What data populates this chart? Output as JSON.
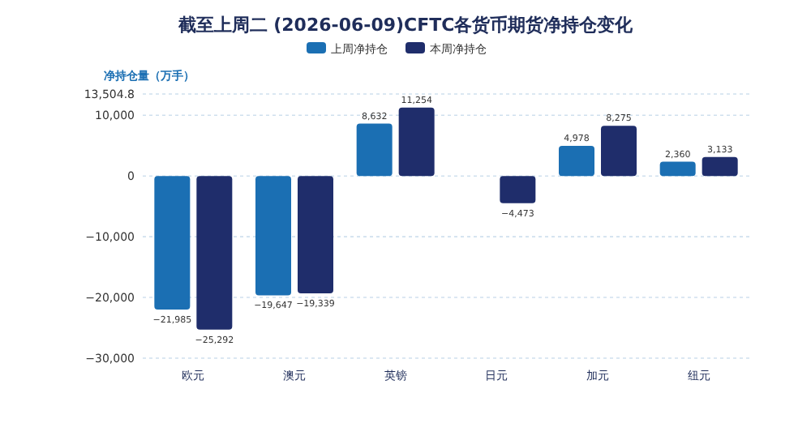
{
  "chart_data": {
    "type": "bar",
    "title": "截至上周二 (2026-06-09)CFTC各货币期货净持仓变化",
    "ylabel": "净持仓量（万手）",
    "categories": [
      "欧元",
      "澳元",
      "英镑",
      "日元",
      "加元",
      "纽元"
    ],
    "series": [
      {
        "name": "上周净持仓",
        "color": "#1b6fb3",
        "values": [
          -21985,
          -19647,
          8632,
          null,
          4978,
          2360
        ],
        "value_labels": [
          "−21,985",
          "−19,647",
          "8,632",
          null,
          "4,978",
          "2,360"
        ]
      },
      {
        "name": "本周净持仓",
        "color": "#1f2d6b",
        "values": [
          -25292,
          -19339,
          11254,
          -4473,
          8275,
          3133
        ],
        "value_labels": [
          "−25,292",
          "−19,339",
          "11,254",
          "−4,473",
          "8,275",
          "3,133"
        ]
      }
    ],
    "ylim": [
      -30000,
      13504.8
    ],
    "yticks": [
      {
        "value": -30000,
        "label": "−30,000"
      },
      {
        "value": -20000,
        "label": "−20,000"
      },
      {
        "value": -10000,
        "label": "−10,000"
      },
      0,
      {
        "value": 10000,
        "label": "10,000"
      },
      {
        "value": 13504.8,
        "label": "13,504.8"
      }
    ],
    "grid": "y",
    "legend": "top"
  }
}
